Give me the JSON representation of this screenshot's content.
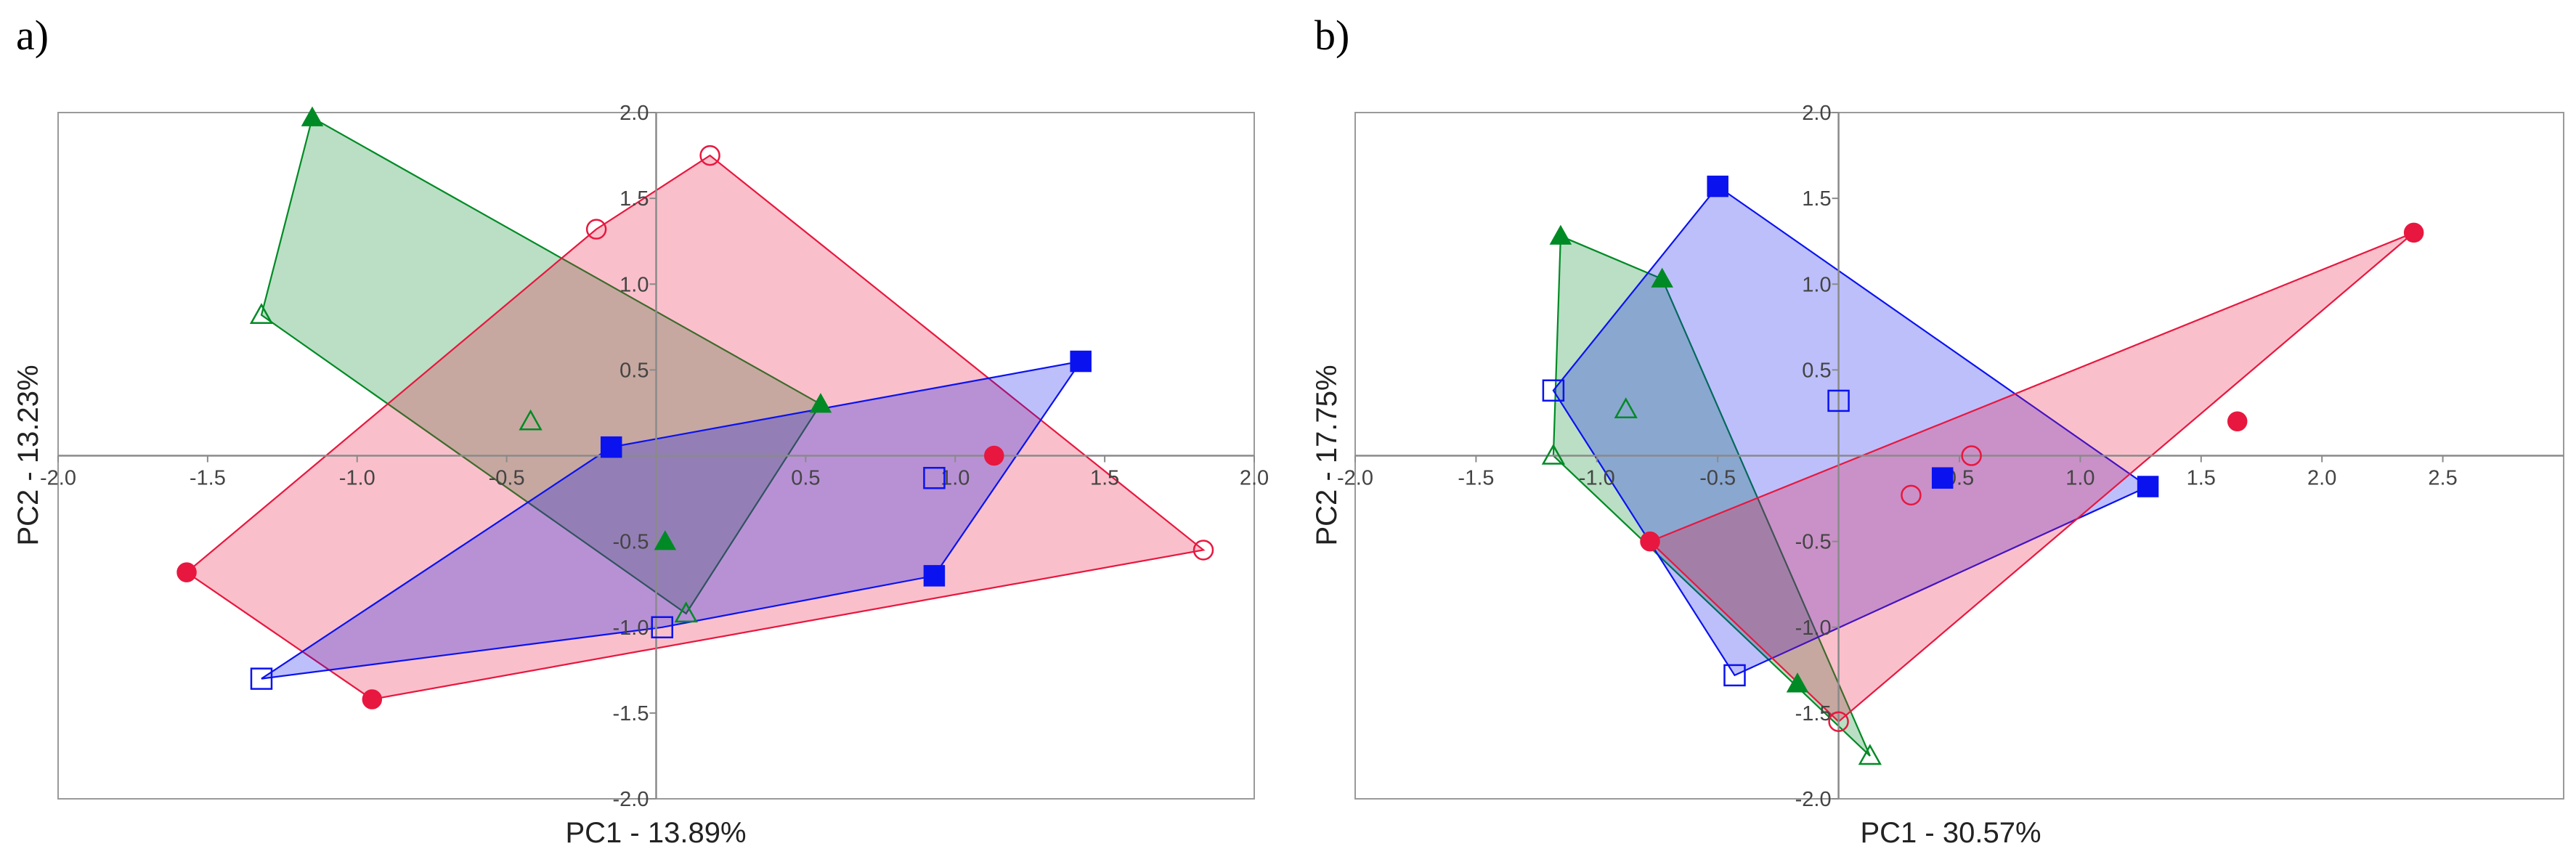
{
  "colors": {
    "green": "#008a25",
    "red": "#e8173f",
    "blue": "#0a12f0"
  },
  "chart_data": [
    {
      "type": "scatter",
      "panel_label": "a)",
      "xlabel": "PC1 - 13.89%",
      "ylabel": "PC2 - 13.23%",
      "xlim": [
        -2.0,
        2.0
      ],
      "ylim": [
        -2.0,
        2.0
      ],
      "xticks": [
        -2.0,
        -1.5,
        -1.0,
        -0.5,
        0.5,
        1.0,
        1.5,
        2.0
      ],
      "yticks": [
        -2.0,
        -1.5,
        -1.0,
        -0.5,
        0.5,
        1.0,
        1.5,
        2.0
      ],
      "grid": false,
      "hulls": [
        {
          "color": "green",
          "points": [
            [
              -1.15,
              1.97
            ],
            [
              0.55,
              0.3
            ],
            [
              0.1,
              -0.92
            ],
            [
              -1.32,
              0.82
            ]
          ]
        },
        {
          "color": "red",
          "points": [
            [
              0.18,
              1.75
            ],
            [
              1.83,
              -0.55
            ],
            [
              -0.95,
              -1.42
            ],
            [
              -1.57,
              -0.68
            ],
            [
              -0.2,
              1.32
            ]
          ]
        },
        {
          "color": "blue",
          "points": [
            [
              1.42,
              0.55
            ],
            [
              0.93,
              -0.7
            ],
            [
              0.02,
              -1.0
            ],
            [
              -1.32,
              -1.3
            ],
            [
              -0.15,
              0.05
            ]
          ]
        }
      ],
      "series": [
        {
          "color": "green",
          "marker": "triangle",
          "filled": true,
          "points": [
            [
              -1.15,
              1.97
            ],
            [
              0.55,
              0.3
            ],
            [
              0.03,
              -0.5
            ]
          ]
        },
        {
          "color": "green",
          "marker": "triangle",
          "filled": false,
          "points": [
            [
              -1.32,
              0.82
            ],
            [
              -0.42,
              0.2
            ],
            [
              0.1,
              -0.92
            ]
          ]
        },
        {
          "color": "red",
          "marker": "circle",
          "filled": true,
          "points": [
            [
              1.13,
              0.0
            ],
            [
              -1.57,
              -0.68
            ],
            [
              -0.95,
              -1.42
            ]
          ]
        },
        {
          "color": "red",
          "marker": "circle",
          "filled": false,
          "points": [
            [
              0.18,
              1.75
            ],
            [
              -0.2,
              1.32
            ],
            [
              1.83,
              -0.55
            ]
          ]
        },
        {
          "color": "blue",
          "marker": "square",
          "filled": true,
          "points": [
            [
              1.42,
              0.55
            ],
            [
              -0.15,
              0.05
            ],
            [
              0.93,
              -0.7
            ]
          ]
        },
        {
          "color": "blue",
          "marker": "square",
          "filled": false,
          "points": [
            [
              0.93,
              -0.13
            ],
            [
              0.02,
              -1.0
            ],
            [
              -1.32,
              -1.3
            ]
          ]
        }
      ]
    },
    {
      "type": "scatter",
      "panel_label": "b)",
      "xlabel": "PC1 - 30.57%",
      "ylabel": "PC2 - 17.75%",
      "xlim": [
        -2.0,
        3.0
      ],
      "ylim": [
        -2.0,
        2.0
      ],
      "xticks": [
        -2.0,
        -1.5,
        -1.0,
        -0.5,
        0.5,
        1.0,
        1.5,
        2.0,
        2.5
      ],
      "yticks": [
        -2.0,
        -1.5,
        -1.0,
        -0.5,
        0.5,
        1.0,
        1.5,
        2.0
      ],
      "grid": false,
      "hulls": [
        {
          "color": "green",
          "points": [
            [
              -1.15,
              1.28
            ],
            [
              -0.73,
              1.03
            ],
            [
              0.13,
              -1.75
            ],
            [
              -1.18,
              0.0
            ]
          ]
        },
        {
          "color": "blue",
          "points": [
            [
              -0.5,
              1.57
            ],
            [
              1.28,
              -0.18
            ],
            [
              -0.43,
              -1.28
            ],
            [
              -1.18,
              0.38
            ]
          ]
        },
        {
          "color": "red",
          "points": [
            [
              2.38,
              1.3
            ],
            [
              0.0,
              -1.55
            ],
            [
              -0.78,
              -0.5
            ]
          ]
        }
      ],
      "series": [
        {
          "color": "green",
          "marker": "triangle",
          "filled": true,
          "points": [
            [
              -1.15,
              1.28
            ],
            [
              -0.73,
              1.03
            ],
            [
              -0.17,
              -1.33
            ]
          ]
        },
        {
          "color": "green",
          "marker": "triangle",
          "filled": false,
          "points": [
            [
              -1.18,
              0.0
            ],
            [
              -0.88,
              0.27
            ],
            [
              0.13,
              -1.75
            ]
          ]
        },
        {
          "color": "blue",
          "marker": "square",
          "filled": true,
          "points": [
            [
              -0.5,
              1.57
            ],
            [
              1.28,
              -0.18
            ],
            [
              0.43,
              -0.13
            ]
          ]
        },
        {
          "color": "blue",
          "marker": "square",
          "filled": false,
          "points": [
            [
              -1.18,
              0.38
            ],
            [
              0.0,
              0.32
            ],
            [
              -0.43,
              -1.28
            ]
          ]
        },
        {
          "color": "red",
          "marker": "circle",
          "filled": true,
          "points": [
            [
              2.38,
              1.3
            ],
            [
              1.65,
              0.2
            ],
            [
              -0.78,
              -0.5
            ]
          ]
        },
        {
          "color": "red",
          "marker": "circle",
          "filled": false,
          "points": [
            [
              0.55,
              0.0
            ],
            [
              0.3,
              -0.23
            ],
            [
              0.0,
              -1.55
            ]
          ]
        }
      ]
    }
  ]
}
